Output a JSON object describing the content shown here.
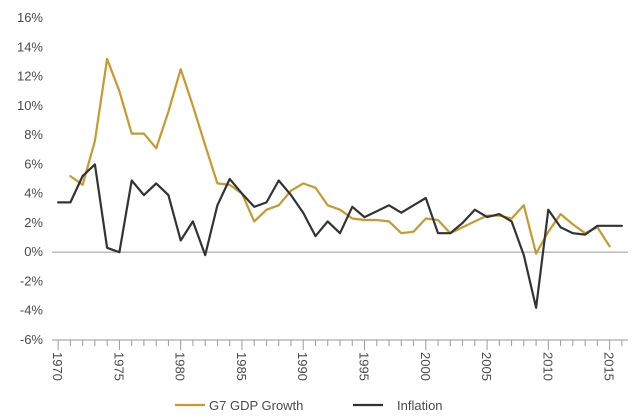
{
  "chart_data": {
    "type": "line",
    "title": "",
    "xlabel": "",
    "ylabel": "",
    "x": [
      1970,
      1971,
      1972,
      1973,
      1974,
      1975,
      1976,
      1977,
      1978,
      1979,
      1980,
      1981,
      1982,
      1983,
      1984,
      1985,
      1986,
      1987,
      1988,
      1989,
      1990,
      1991,
      1992,
      1993,
      1994,
      1995,
      1996,
      1997,
      1998,
      1999,
      2000,
      2001,
      2002,
      2003,
      2004,
      2005,
      2006,
      2007,
      2008,
      2009,
      2010,
      2011,
      2012,
      2013,
      2014,
      2015,
      2016
    ],
    "xlim": [
      1969.5,
      2016.5
    ],
    "ylim": [
      -6,
      16
    ],
    "x_ticks": [
      1970,
      1975,
      1980,
      1985,
      1990,
      1995,
      2000,
      2005,
      2010,
      2015
    ],
    "x_tick_labels": [
      "1970",
      "1975",
      "1980",
      "1985",
      "1990",
      "1995",
      "2000",
      "2005",
      "2010",
      "2015"
    ],
    "y_ticks": [
      -6,
      -4,
      -2,
      0,
      2,
      4,
      6,
      8,
      10,
      12,
      14,
      16
    ],
    "y_tick_labels": [
      "-6%",
      "-4%",
      "-2%",
      "0%",
      "2%",
      "4%",
      "6%",
      "8%",
      "10%",
      "12%",
      "14%",
      "16%"
    ],
    "grid": false,
    "legend_position": "bottom",
    "series": [
      {
        "name": "G7 GDP Growth",
        "color": "#c9992e",
        "values": [
          null,
          5.2,
          4.6,
          7.6,
          13.2,
          11.0,
          8.1,
          8.1,
          7.1,
          9.6,
          12.5,
          10.0,
          7.3,
          4.7,
          4.6,
          4.0,
          2.1,
          2.9,
          3.2,
          4.2,
          4.7,
          4.4,
          3.2,
          2.9,
          2.3,
          2.2,
          2.2,
          2.1,
          1.3,
          1.4,
          2.3,
          2.2,
          1.3,
          1.7,
          2.1,
          2.5,
          2.5,
          2.3,
          3.2,
          -0.1,
          1.4,
          2.6,
          1.9,
          1.3,
          1.7,
          0.4,
          null
        ]
      },
      {
        "name": "Inflation",
        "color": "#333333",
        "values": [
          3.4,
          3.4,
          5.2,
          6.0,
          0.3,
          0.0,
          4.9,
          3.9,
          4.7,
          3.9,
          0.8,
          2.1,
          -0.2,
          3.2,
          5.0,
          4.0,
          3.1,
          3.4,
          4.9,
          3.9,
          2.7,
          1.1,
          2.1,
          1.3,
          3.1,
          2.4,
          2.8,
          3.2,
          2.7,
          3.2,
          3.7,
          1.3,
          1.3,
          2.0,
          2.9,
          2.4,
          2.6,
          2.1,
          -0.2,
          -3.8,
          2.9,
          1.7,
          1.3,
          1.2,
          1.8,
          1.8,
          1.8
        ]
      }
    ]
  }
}
